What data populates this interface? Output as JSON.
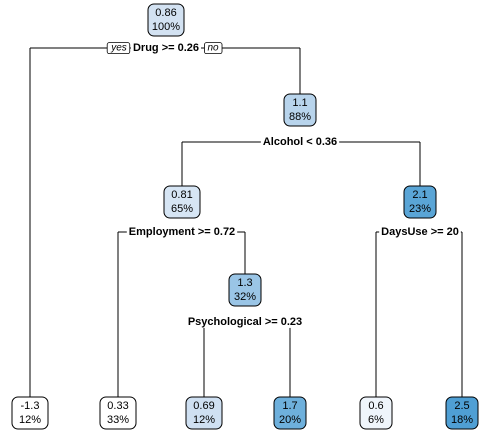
{
  "tree": {
    "nodes": [
      {
        "value": "0.86",
        "percent": "100%",
        "fill": "#d3e2f2"
      },
      {
        "value": "-1.3",
        "percent": "12%",
        "fill": "#ffffff"
      },
      {
        "value": "1.1",
        "percent": "88%",
        "fill": "#b8d4ec"
      },
      {
        "value": "0.81",
        "percent": "65%",
        "fill": "#d6e5f4"
      },
      {
        "value": "0.33",
        "percent": "33%",
        "fill": "#ffffff"
      },
      {
        "value": "1.3",
        "percent": "32%",
        "fill": "#9ac5e6"
      },
      {
        "value": "0.69",
        "percent": "12%",
        "fill": "#cfe0f2"
      },
      {
        "value": "1.7",
        "percent": "20%",
        "fill": "#6eb0dc"
      },
      {
        "value": "2.1",
        "percent": "23%",
        "fill": "#5aa5d6"
      },
      {
        "value": "0.6",
        "percent": "6%",
        "fill": "#eff5fb"
      },
      {
        "value": "2.5",
        "percent": "18%",
        "fill": "#4f9fd4"
      }
    ],
    "splits": [
      {
        "label": "Drug >= 0.26"
      },
      {
        "label": "Alcohol < 0.36"
      },
      {
        "label": "Employment >= 0.72"
      },
      {
        "label": "Psychological >= 0.23"
      },
      {
        "label": "DaysUse >= 20"
      }
    ],
    "branch_labels": {
      "left": "yes",
      "right": "no"
    }
  }
}
